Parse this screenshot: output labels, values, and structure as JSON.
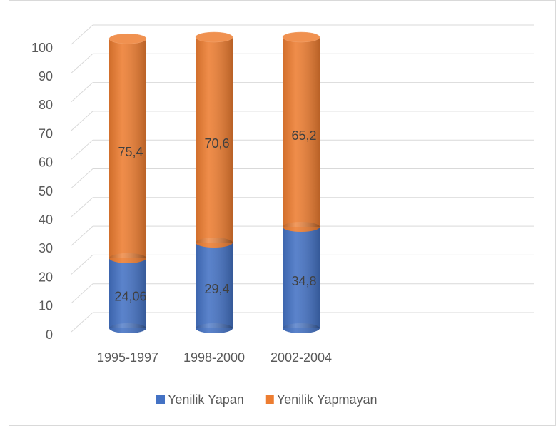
{
  "chart_data": {
    "type": "bar3d_stacked_cylinder",
    "categories": [
      "1995-1997",
      "1998-2000",
      "2002-2004"
    ],
    "series": [
      {
        "name": "Yenilik Yapan",
        "color": "#4472c4",
        "values": [
          24.06,
          29.4,
          34.8
        ],
        "value_labels": [
          "24,06",
          "29,4",
          "34,8"
        ]
      },
      {
        "name": "Yenilik Yapmayan",
        "color": "#ed7d31",
        "values": [
          75.4,
          70.6,
          65.2
        ],
        "value_labels": [
          "75,4",
          "70,6",
          "65,2"
        ]
      }
    ],
    "ylim": [
      0,
      100
    ],
    "yticks": [
      0,
      10,
      20,
      30,
      40,
      50,
      60,
      70,
      80,
      90,
      100
    ],
    "grid": true,
    "legend": "bottom"
  }
}
